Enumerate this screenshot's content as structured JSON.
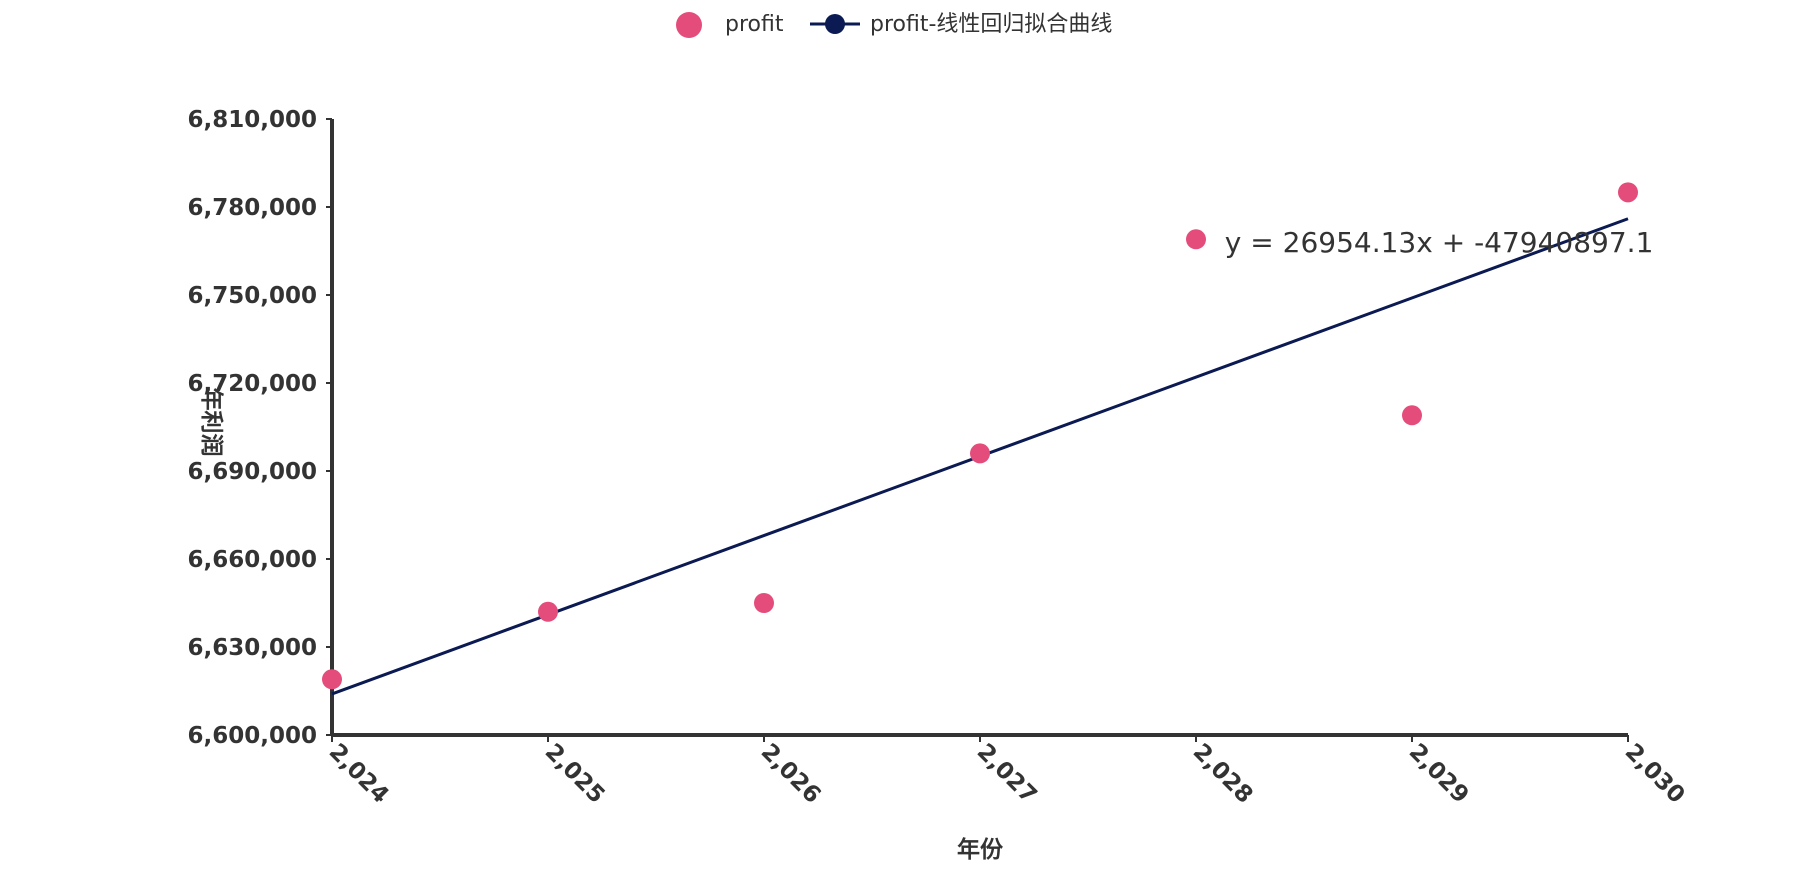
{
  "chart_data": {
    "type": "scatter",
    "xlabel": "年份",
    "ylabel": "年利润",
    "xlim": [
      2024,
      2030
    ],
    "ylim": [
      6600000,
      6810000
    ],
    "x_ticks": [
      2024,
      2025,
      2026,
      2027,
      2028,
      2029,
      2030
    ],
    "y_ticks": [
      6600000,
      6630000,
      6660000,
      6690000,
      6720000,
      6750000,
      6780000,
      6810000
    ],
    "x_tick_labels": [
      "2,024",
      "2,025",
      "2,026",
      "2,027",
      "2,028",
      "2,029",
      "2,030"
    ],
    "y_tick_labels": [
      "6,600,000",
      "6,630,000",
      "6,660,000",
      "6,690,000",
      "6,720,000",
      "6,750,000",
      "6,780,000",
      "6,810,000"
    ],
    "grid": false,
    "legend_position": "top-center",
    "series": [
      {
        "name": "profit",
        "type": "scatter",
        "color": "#e44d7b",
        "points": [
          {
            "x": 2024,
            "y": 6619000
          },
          {
            "x": 2025,
            "y": 6642000
          },
          {
            "x": 2026,
            "y": 6645000
          },
          {
            "x": 2027,
            "y": 6696000
          },
          {
            "x": 2028,
            "y": 6769000
          },
          {
            "x": 2029,
            "y": 6709000
          },
          {
            "x": 2030,
            "y": 6785000
          }
        ]
      },
      {
        "name": "profit-线性回归拟合曲线",
        "type": "line",
        "color": "#0b1a52",
        "points": [
          {
            "x": 2024,
            "y": 6614000
          },
          {
            "x": 2030,
            "y": 6776000
          }
        ]
      }
    ],
    "equation_label": "y = 26954.13x + -47940897.1",
    "equation_at": {
      "x": 2028.05,
      "y": 6768000
    }
  }
}
